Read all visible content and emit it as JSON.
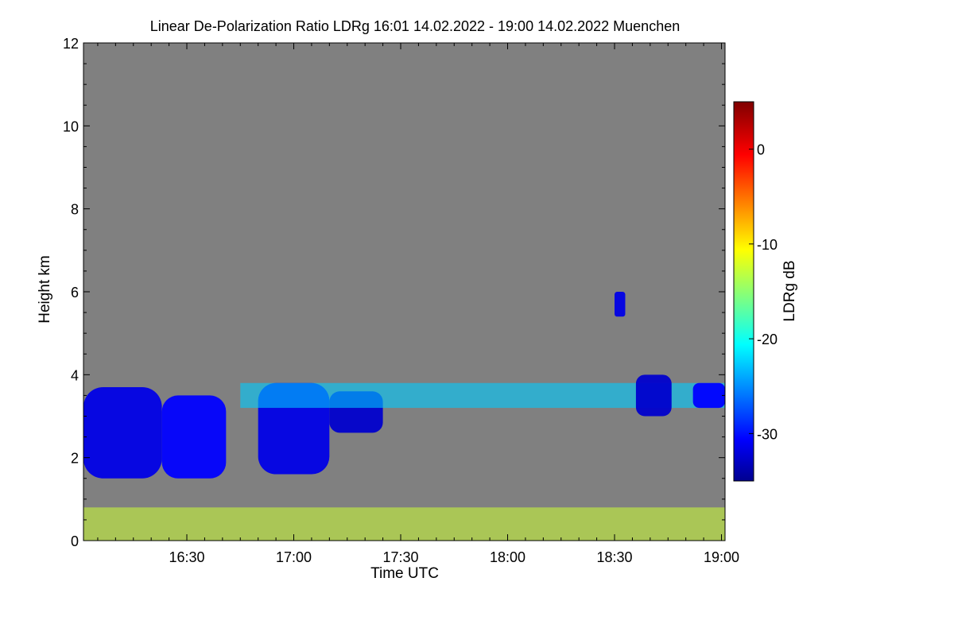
{
  "chart_data": {
    "type": "heatmap",
    "title": "Linear De-Polarization Ratio LDRg   16:01 14.02.2022 - 19:00 14.02.2022 Muenchen",
    "xlabel": "Time UTC",
    "ylabel": "Height km",
    "x_range_minutes_utc": [
      961,
      1141
    ],
    "xlim_labels": [
      "16:01",
      "19:00"
    ],
    "x_ticks": [
      {
        "minutes": 990,
        "label": "16:30"
      },
      {
        "minutes": 1020,
        "label": "17:00"
      },
      {
        "minutes": 1050,
        "label": "17:30"
      },
      {
        "minutes": 1080,
        "label": "18:00"
      },
      {
        "minutes": 1110,
        "label": "18:30"
      },
      {
        "minutes": 1140,
        "label": "19:00"
      }
    ],
    "ylim": [
      0,
      12
    ],
    "y_ticks": [
      0,
      2,
      4,
      6,
      8,
      10,
      12
    ],
    "background_value": "no data (grey)",
    "colorbar": {
      "label": "LDRg dB",
      "range": [
        -35,
        5
      ],
      "ticks": [
        0,
        -10,
        -20,
        -30
      ],
      "colormap": "jet"
    },
    "features": [
      {
        "name": "cloud-1",
        "t_start": 961,
        "t_end": 983,
        "h_bottom": 1.5,
        "h_top": 3.7,
        "ldr_db": -31
      },
      {
        "name": "cloud-1b",
        "t_start": 983,
        "t_end": 1001,
        "h_bottom": 1.5,
        "h_top": 3.5,
        "ldr_db": -30
      },
      {
        "name": "cloud-2",
        "t_start": 1010,
        "t_end": 1030,
        "h_bottom": 1.6,
        "h_top": 3.8,
        "ldr_db": -31
      },
      {
        "name": "cloud-2b",
        "t_start": 1030,
        "t_end": 1045,
        "h_bottom": 2.6,
        "h_top": 3.6,
        "ldr_db": -32
      },
      {
        "name": "layer-3.5km",
        "t_start": 1005,
        "t_end": 1141,
        "h_bottom": 3.2,
        "h_top": 3.8,
        "ldr_db": -22
      },
      {
        "name": "isolated-cloud-6km",
        "t_start": 1110,
        "t_end": 1113,
        "h_bottom": 5.4,
        "h_top": 6.0,
        "ldr_db": -31
      },
      {
        "name": "cloud-18:40",
        "t_start": 1116,
        "t_end": 1126,
        "h_bottom": 3.0,
        "h_top": 4.0,
        "ldr_db": -32
      },
      {
        "name": "cloud-18:55",
        "t_start": 1132,
        "t_end": 1141,
        "h_bottom": 3.2,
        "h_top": 3.8,
        "ldr_db": -30
      },
      {
        "name": "boundary-layer",
        "t_start": 961,
        "t_end": 1141,
        "h_bottom": 0.0,
        "h_top": 0.8,
        "ldr_db": -12
      }
    ]
  },
  "colors": {
    "no_data": "#808080",
    "frame": "#000000"
  }
}
